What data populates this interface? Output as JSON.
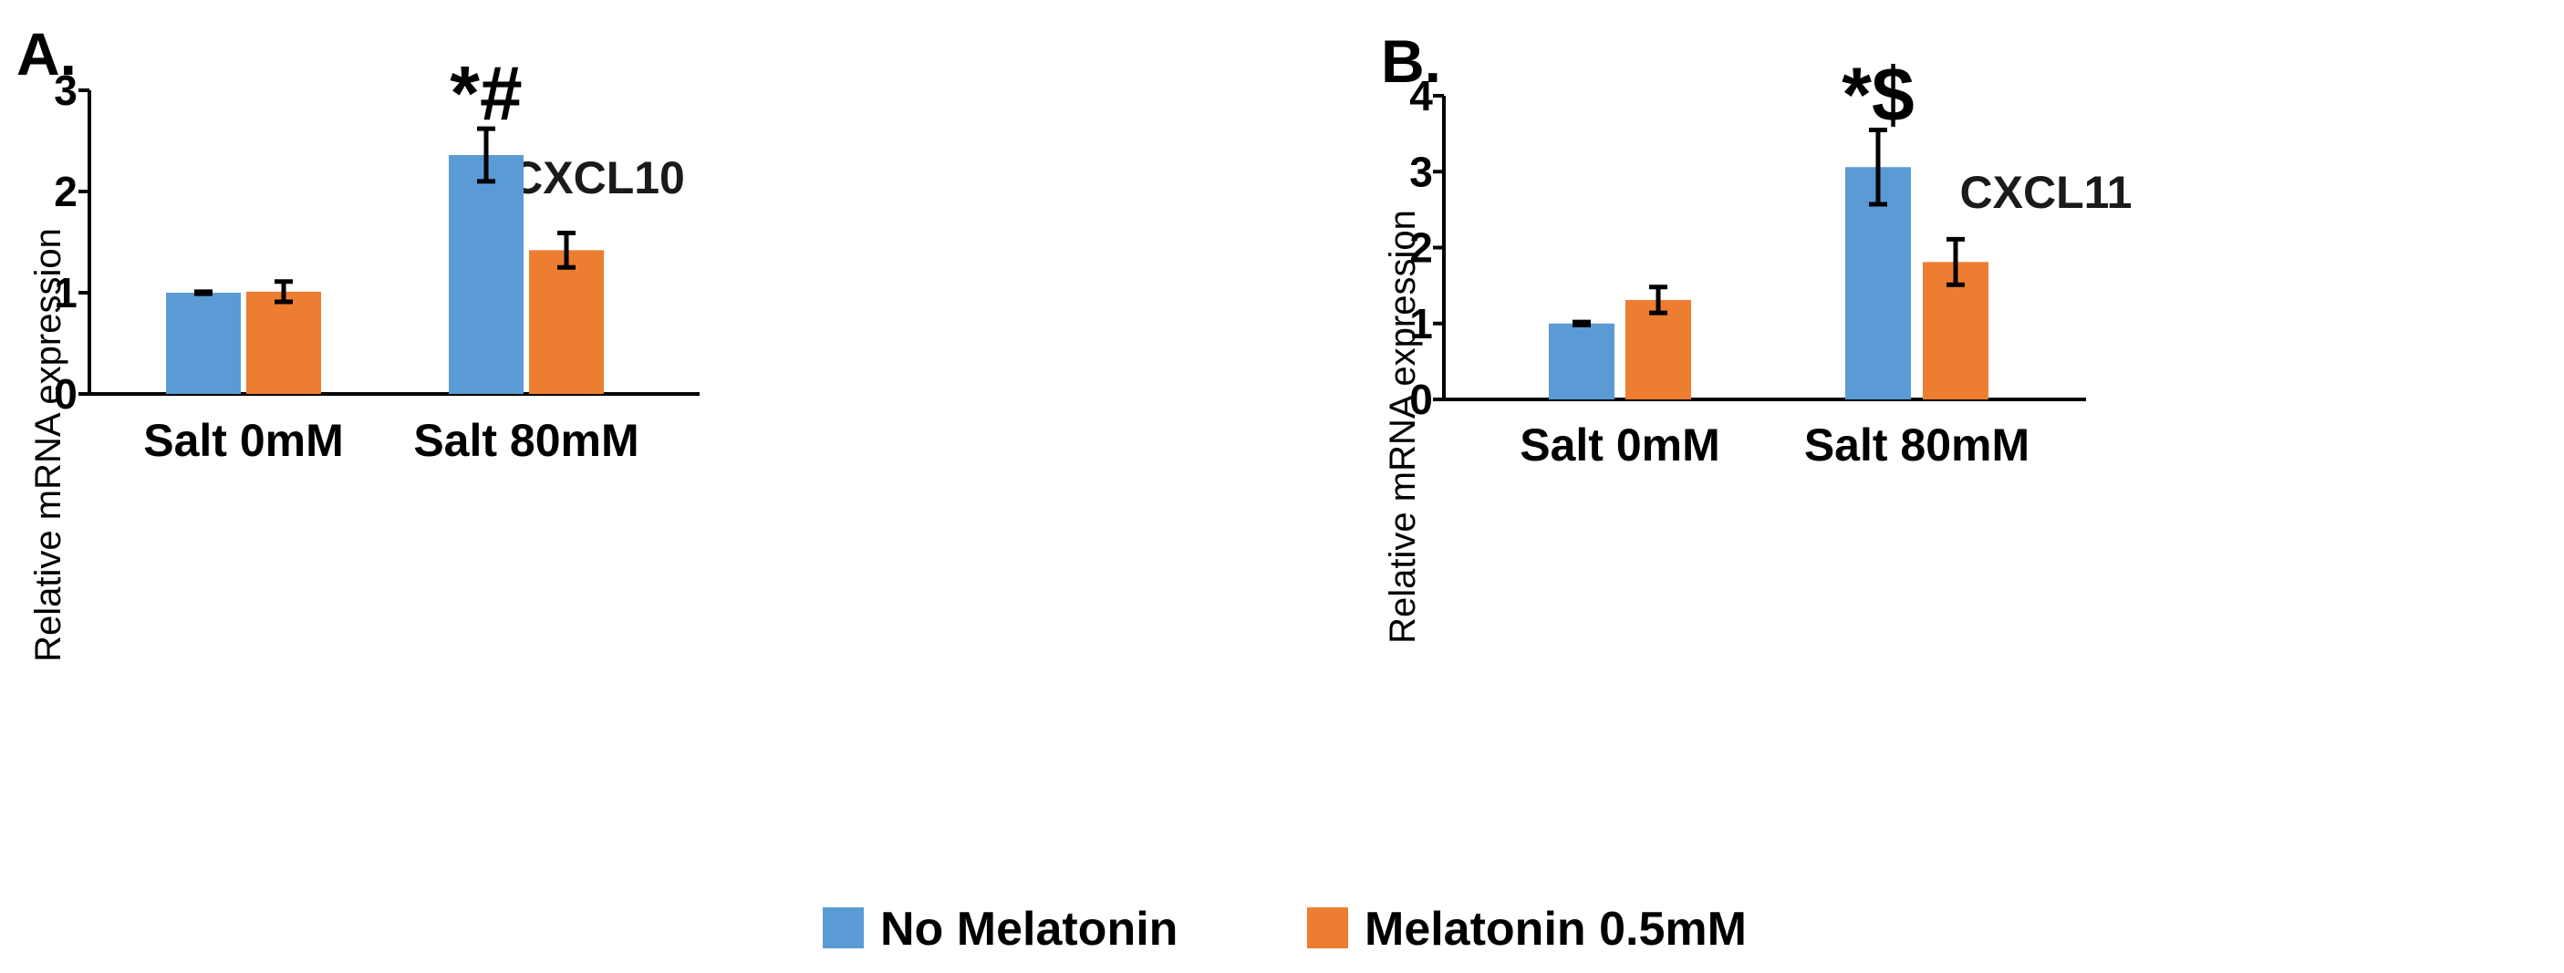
{
  "colors": {
    "series_1": "#5B9BD5",
    "series_2": "#ED7D31"
  },
  "legend": [
    "No Melatonin",
    "Melatonin 0.5mM"
  ],
  "chart_data": [
    {
      "panel": "A.",
      "type": "bar",
      "title": "CXCL10",
      "ylabel": "Relative mRNA expression",
      "xlabel": "",
      "ylim": [
        0,
        3
      ],
      "yticks": [
        0,
        1,
        2,
        3
      ],
      "categories": [
        "Salt 0mM",
        "Salt 80mM"
      ],
      "series": [
        {
          "name": "No Melatonin",
          "values": [
            1.0,
            2.36
          ],
          "errors": [
            0.01,
            0.26
          ]
        },
        {
          "name": "Melatonin 0.5mM",
          "values": [
            1.01,
            1.42
          ],
          "errors": [
            0.1,
            0.17
          ]
        }
      ],
      "annotations": [
        {
          "text": "*#",
          "category": "Salt 80mM",
          "series": "No Melatonin"
        }
      ]
    },
    {
      "panel": "B.",
      "type": "bar",
      "title": "CXCL11",
      "ylabel": "Relative mRNA expression",
      "xlabel": "",
      "ylim": [
        0,
        4
      ],
      "yticks": [
        0,
        1,
        2,
        3,
        4
      ],
      "categories": [
        "Salt 0mM",
        "Salt 80mM"
      ],
      "series": [
        {
          "name": "No Melatonin",
          "values": [
            1.0,
            3.06
          ],
          "errors": [
            0.02,
            0.49
          ]
        },
        {
          "name": "Melatonin 0.5mM",
          "values": [
            1.31,
            1.81
          ],
          "errors": [
            0.17,
            0.3
          ]
        }
      ],
      "annotations": [
        {
          "text": "*$",
          "category": "Salt 80mM",
          "series": "No Melatonin"
        }
      ]
    }
  ]
}
